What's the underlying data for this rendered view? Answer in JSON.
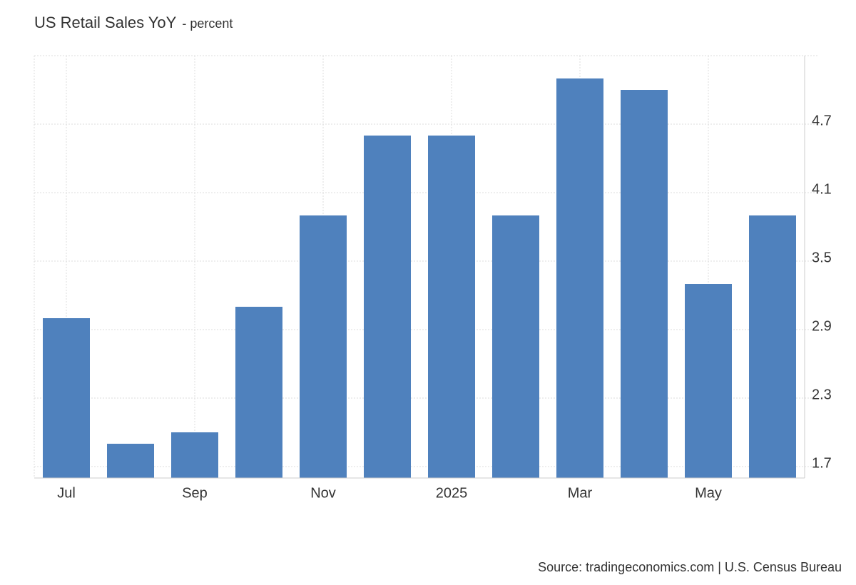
{
  "chart_data": {
    "type": "bar",
    "title": "US Retail Sales YoY",
    "subtitle": "- percent",
    "categories": [
      "Jul",
      null,
      "Sep",
      null,
      "Nov",
      null,
      "2025",
      null,
      "Mar",
      null,
      "May",
      null
    ],
    "values": [
      3.0,
      1.9,
      2.0,
      3.1,
      3.9,
      4.6,
      4.6,
      3.9,
      5.1,
      5.0,
      3.3,
      3.9
    ],
    "color": "#4f81bd",
    "ylim": [
      1.6,
      5.3
    ],
    "yticks": [
      1.7,
      2.3,
      2.9,
      3.5,
      4.1,
      4.7
    ],
    "grid": true,
    "source": "Source: tradingeconomics.com | U.S. Census Bureau"
  }
}
